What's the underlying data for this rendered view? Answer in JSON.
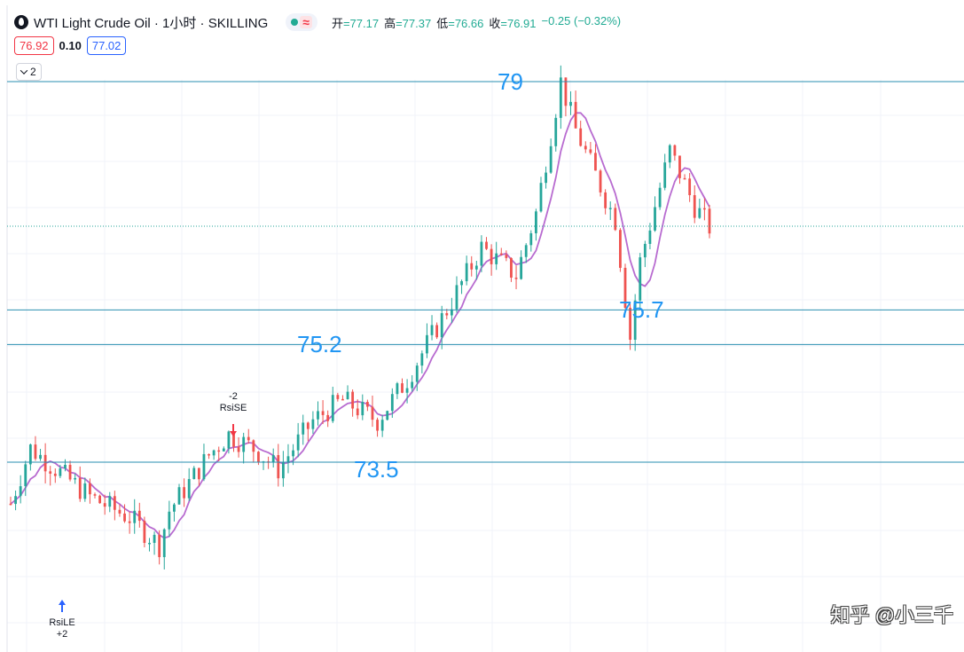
{
  "header": {
    "symbol": "WTI Light Crude Oil · 1小时 · SKILLING",
    "ohlc": [
      {
        "label": "开",
        "value": "=77.17"
      },
      {
        "label": "高",
        "value": "=77.37"
      },
      {
        "label": "低",
        "value": "=76.66"
      },
      {
        "label": "收",
        "value": "=76.91"
      }
    ],
    "change": "−0.25 (−0.32%)"
  },
  "quote": {
    "bid": "76.92",
    "spread": "0.10",
    "ask": "77.02"
  },
  "indicators_toggle": {
    "count": "2"
  },
  "colors": {
    "up": "#26a69a",
    "down": "#ef5350",
    "ma": "#b86bd0",
    "level": "#2196f3",
    "grid": "#f0f3fa",
    "hline": "#2a8fb0"
  },
  "annotations": {
    "levels": [
      "79",
      "75.7",
      "75.2",
      "73.5"
    ],
    "signals": [
      {
        "name": "RsiSE",
        "qty": "-2"
      },
      {
        "name": "RsiLE",
        "qty": "+2"
      }
    ]
  },
  "watermark": "知乎 @小三千",
  "chart_data": {
    "type": "candlestick",
    "x": [
      0,
      130
    ],
    "y_range": [
      72.2,
      79.4
    ],
    "horizontal_lines": [
      79.0,
      75.7,
      75.2,
      73.5
    ],
    "last_price_line": 76.91,
    "segments": [
      [
        0,
        72.9
      ],
      [
        4,
        73.7
      ],
      [
        16,
        73.0
      ],
      [
        24,
        72.7
      ],
      [
        30,
        72.3
      ],
      [
        32,
        72.8
      ],
      [
        40,
        73.6
      ],
      [
        44,
        73.9
      ],
      [
        49,
        73.7
      ],
      [
        54,
        73.4
      ],
      [
        61,
        74.1
      ],
      [
        67,
        74.4
      ],
      [
        74,
        74.1
      ],
      [
        80,
        74.7
      ],
      [
        88,
        75.7
      ],
      [
        95,
        76.6
      ],
      [
        102,
        76.2
      ],
      [
        106,
        77.1
      ],
      [
        111,
        79.0
      ],
      [
        114,
        78.3
      ],
      [
        122,
        77.0
      ],
      [
        125,
        75.3
      ],
      [
        127,
        76.4
      ],
      [
        133,
        78.0
      ],
      [
        138,
        77.2
      ],
      [
        141,
        76.9
      ]
    ],
    "signals": [
      {
        "name": "RsiLE",
        "qty": "+2",
        "direction": "long"
      },
      {
        "name": "RsiSE",
        "qty": "-2",
        "direction": "short"
      }
    ]
  }
}
